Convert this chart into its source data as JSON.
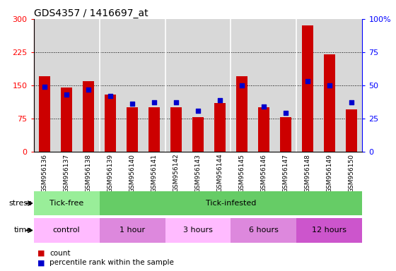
{
  "title": "GDS4357 / 1416697_at",
  "samples": [
    "GSM956136",
    "GSM956137",
    "GSM956138",
    "GSM956139",
    "GSM956140",
    "GSM956141",
    "GSM956142",
    "GSM956143",
    "GSM956144",
    "GSM956145",
    "GSM956146",
    "GSM956147",
    "GSM956148",
    "GSM956149",
    "GSM956150"
  ],
  "counts": [
    170,
    145,
    160,
    130,
    100,
    100,
    100,
    78,
    110,
    170,
    100,
    78,
    285,
    220,
    95
  ],
  "percentiles": [
    49,
    43,
    47,
    42,
    36,
    37,
    37,
    31,
    39,
    50,
    34,
    29,
    53,
    50,
    37
  ],
  "ylim_left": [
    0,
    300
  ],
  "ylim_right": [
    0,
    100
  ],
  "yticks_left": [
    0,
    75,
    150,
    225,
    300
  ],
  "yticks_right": [
    0,
    25,
    50,
    75,
    100
  ],
  "bar_color": "#cc0000",
  "dot_color": "#0000cc",
  "plot_bg": "#d8d8d8",
  "stress_groups": [
    {
      "label": "Tick-free",
      "start": 0,
      "end": 3,
      "color": "#99ee99"
    },
    {
      "label": "Tick-infested",
      "start": 3,
      "end": 15,
      "color": "#66cc66"
    }
  ],
  "time_groups": [
    {
      "label": "control",
      "start": 0,
      "end": 3,
      "color": "#ffbbff"
    },
    {
      "label": "1 hour",
      "start": 3,
      "end": 6,
      "color": "#dd88dd"
    },
    {
      "label": "3 hours",
      "start": 6,
      "end": 9,
      "color": "#ffbbff"
    },
    {
      "label": "6 hours",
      "start": 9,
      "end": 12,
      "color": "#dd88dd"
    },
    {
      "label": "12 hours",
      "start": 12,
      "end": 15,
      "color": "#cc55cc"
    }
  ],
  "title_fontsize": 10,
  "bar_width": 0.5
}
